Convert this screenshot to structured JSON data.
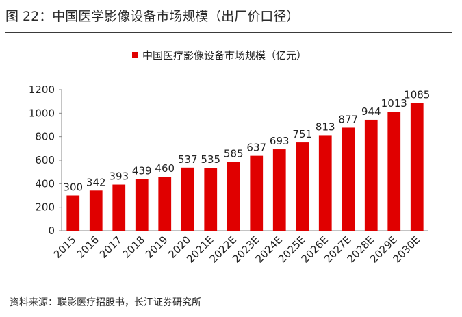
{
  "figure_title": "图 22：中国医学影像设备市场规模（出厂价口径）",
  "source": "资料来源：联影医疗招股书，长江证券研究所",
  "chart_data": {
    "type": "bar",
    "title": "",
    "xlabel": "",
    "ylabel": "",
    "ylim": [
      0,
      1200
    ],
    "yticks": [
      0,
      200,
      400,
      600,
      800,
      1000,
      1200
    ],
    "grid": false,
    "legend": "top-center",
    "categories": [
      "2015",
      "2016",
      "2017",
      "2018",
      "2019",
      "2020",
      "2021E",
      "2022E",
      "2023E",
      "2024E",
      "2025E",
      "2026E",
      "2027E",
      "2028E",
      "2029E",
      "2030E"
    ],
    "series": [
      {
        "name": "中国医疗影像设备市场规模（亿元）",
        "color": "#e00000",
        "values": [
          300,
          342,
          393,
          439,
          460,
          537,
          535,
          585,
          637,
          693,
          751,
          813,
          877,
          944,
          1013,
          1085
        ]
      }
    ]
  }
}
